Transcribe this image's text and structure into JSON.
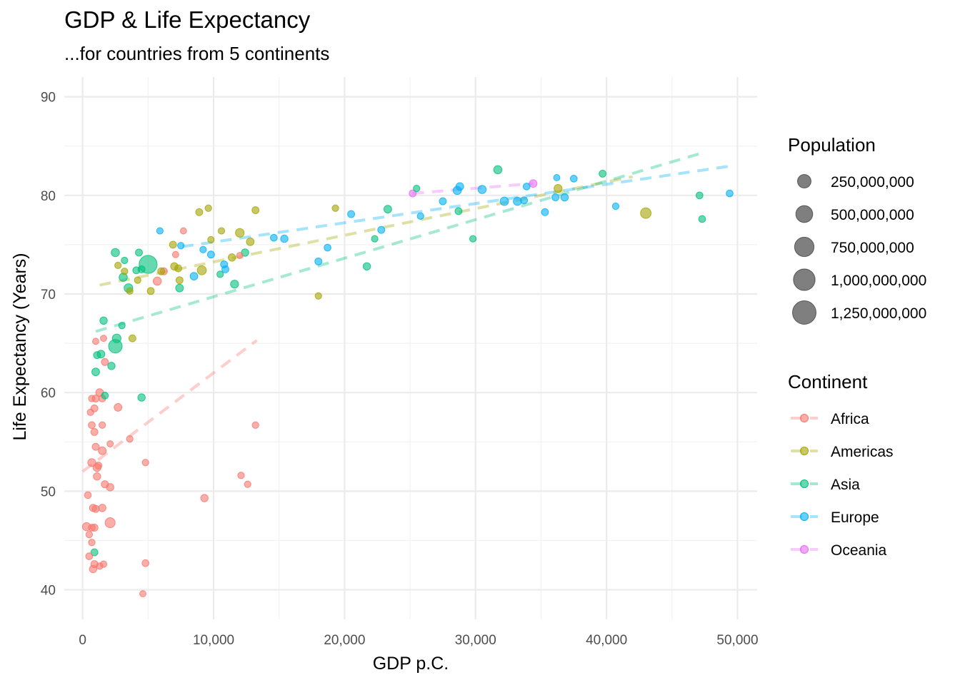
{
  "title": "GDP & Life Expectancy",
  "subtitle": "...for countries from 5 continents",
  "chart_data": {
    "type": "scatter",
    "xlabel": "GDP p.C.",
    "ylabel": "Life Expectancy (Years)",
    "xlim": [
      -1400,
      51500
    ],
    "ylim": [
      37,
      92
    ],
    "x_ticks": [
      0,
      10000,
      20000,
      30000,
      40000,
      50000
    ],
    "x_tick_labels": [
      "0",
      "10,000",
      "20,000",
      "30,000",
      "40,000",
      "50,000"
    ],
    "y_ticks": [
      40,
      50,
      60,
      70,
      80,
      90
    ],
    "y_tick_labels": [
      "40",
      "50",
      "60",
      "70",
      "80",
      "90"
    ],
    "grid": true,
    "size_legend": {
      "title": "Population",
      "entries": [
        {
          "label": "250,000,000",
          "value": 250000000
        },
        {
          "label": "500,000,000",
          "value": 500000000
        },
        {
          "label": "750,000,000",
          "value": 750000000
        },
        {
          "label": "1,000,000,000",
          "value": 1000000000
        },
        {
          "label": "1,250,000,000",
          "value": 1250000000
        }
      ]
    },
    "color_legend": {
      "title": "Continent",
      "placement": "right"
    },
    "series": [
      {
        "name": "Africa",
        "color": "#F8766D",
        "trend": [
          [
            0,
            52.0
          ],
          [
            13300,
            65.3
          ]
        ],
        "points": [
          [
            300,
            46.4,
            30
          ],
          [
            500,
            43.4,
            8
          ],
          [
            400,
            49.6,
            8
          ],
          [
            700,
            44.8,
            5
          ],
          [
            800,
            42.1,
            15
          ],
          [
            900,
            42.6,
            12
          ],
          [
            700,
            46.3,
            8
          ],
          [
            900,
            46.3,
            12
          ],
          [
            800,
            48.3,
            12
          ],
          [
            1000,
            48.2,
            10
          ],
          [
            1500,
            48.3,
            15
          ],
          [
            1600,
            42.6,
            5
          ],
          [
            1300,
            42.4,
            5
          ],
          [
            2100,
            46.8,
            80
          ],
          [
            500,
            45.6,
            5
          ],
          [
            1100,
            51.5,
            15
          ],
          [
            1700,
            50.7,
            12
          ],
          [
            2100,
            50.4,
            15
          ],
          [
            700,
            52.9,
            25
          ],
          [
            1100,
            52.4,
            25
          ],
          [
            1200,
            52.6,
            10
          ],
          [
            1000,
            54.5,
            10
          ],
          [
            1500,
            54.1,
            20
          ],
          [
            2100,
            54.8,
            3
          ],
          [
            900,
            56.0,
            10
          ],
          [
            1500,
            56.7,
            5
          ],
          [
            700,
            56.7,
            8
          ],
          [
            600,
            58.0,
            5
          ],
          [
            900,
            58.4,
            10
          ],
          [
            700,
            59.4,
            5
          ],
          [
            1300,
            60.0,
            20
          ],
          [
            1500,
            59.4,
            8
          ],
          [
            1000,
            59.4,
            10
          ],
          [
            1700,
            63.1,
            10
          ],
          [
            1000,
            65.2,
            3
          ],
          [
            1600,
            65.5,
            3
          ],
          [
            2700,
            58.5,
            20
          ],
          [
            3600,
            55.3,
            5
          ],
          [
            4800,
            52.9,
            5
          ],
          [
            4800,
            42.7,
            8
          ],
          [
            4600,
            39.6,
            3
          ],
          [
            9300,
            49.3,
            15
          ],
          [
            12100,
            51.6,
            5
          ],
          [
            12600,
            50.7,
            5
          ],
          [
            13200,
            56.7,
            5
          ],
          [
            12000,
            73.9,
            3
          ],
          [
            7100,
            74.0,
            3
          ],
          [
            7700,
            76.4,
            3
          ],
          [
            5700,
            71.3,
            30
          ],
          [
            6200,
            72.3,
            10
          ]
        ]
      },
      {
        "name": "Americas",
        "color": "#A3A500",
        "trend": [
          [
            1300,
            70.9
          ],
          [
            42000,
            81.9
          ]
        ],
        "points": [
          [
            2700,
            72.9,
            5
          ],
          [
            3200,
            72.3,
            5
          ],
          [
            3600,
            70.3,
            5
          ],
          [
            3800,
            65.5,
            10
          ],
          [
            4200,
            71.4,
            5
          ],
          [
            5200,
            70.3,
            10
          ],
          [
            6000,
            72.3,
            10
          ],
          [
            6900,
            75.0,
            10
          ],
          [
            7000,
            72.8,
            15
          ],
          [
            7300,
            72.6,
            10
          ],
          [
            7400,
            71.4,
            10
          ],
          [
            8900,
            78.3,
            10
          ],
          [
            9100,
            72.4,
            50
          ],
          [
            9600,
            78.7,
            5
          ],
          [
            9800,
            75.5,
            5
          ],
          [
            10600,
            76.4,
            5
          ],
          [
            11400,
            73.7,
            15
          ],
          [
            12000,
            76.2,
            40
          ],
          [
            12800,
            75.3,
            20
          ],
          [
            13200,
            78.5,
            10
          ],
          [
            18000,
            69.8,
            5
          ],
          [
            19300,
            78.7,
            5
          ],
          [
            36300,
            80.7,
            25
          ],
          [
            43000,
            78.2,
            100
          ]
        ]
      },
      {
        "name": "Asia",
        "color": "#00BF7D",
        "trend": [
          [
            1000,
            66.2
          ],
          [
            47300,
            84.3
          ]
        ],
        "points": [
          [
            900,
            43.8,
            10
          ],
          [
            1000,
            62.1,
            20
          ],
          [
            1100,
            63.8,
            10
          ],
          [
            1400,
            63.9,
            20
          ],
          [
            1600,
            67.3,
            15
          ],
          [
            1700,
            59.7,
            8
          ],
          [
            2200,
            62.7,
            15
          ],
          [
            2500,
            64.7,
            250
          ],
          [
            2600,
            65.5,
            40
          ],
          [
            2500,
            74.2,
            30
          ],
          [
            3000,
            66.8,
            5
          ],
          [
            3100,
            71.7,
            30
          ],
          [
            3200,
            73.4,
            5
          ],
          [
            3500,
            70.6,
            40
          ],
          [
            4100,
            72.4,
            10
          ],
          [
            4300,
            74.2,
            10
          ],
          [
            4500,
            72.5,
            10
          ],
          [
            4500,
            59.5,
            15
          ],
          [
            5000,
            73.0,
            600
          ],
          [
            7400,
            70.6,
            20
          ],
          [
            10500,
            72.0,
            5
          ],
          [
            11600,
            71.0,
            25
          ],
          [
            12400,
            74.2,
            15
          ],
          [
            21700,
            72.8,
            15
          ],
          [
            22300,
            75.6,
            5
          ],
          [
            23300,
            78.6,
            20
          ],
          [
            25500,
            80.7,
            5
          ],
          [
            28700,
            78.4,
            10
          ],
          [
            29800,
            75.6,
            5
          ],
          [
            31700,
            82.6,
            30
          ],
          [
            39700,
            82.2,
            10
          ],
          [
            47100,
            80.0,
            8
          ],
          [
            47300,
            77.6,
            8
          ]
        ]
      },
      {
        "name": "Europe",
        "color": "#00B0F6",
        "trend": [
          [
            7600,
            74.8
          ],
          [
            49600,
            83.0
          ]
        ],
        "points": [
          [
            5900,
            76.4,
            5
          ],
          [
            7500,
            74.9,
            5
          ],
          [
            8500,
            71.8,
            20
          ],
          [
            9200,
            74.5,
            5
          ],
          [
            9800,
            74.0,
            10
          ],
          [
            10800,
            73.0,
            10
          ],
          [
            10900,
            72.5,
            10
          ],
          [
            14600,
            75.7,
            8
          ],
          [
            15400,
            75.6,
            15
          ],
          [
            18000,
            73.3,
            10
          ],
          [
            18700,
            74.7,
            8
          ],
          [
            20500,
            78.1,
            10
          ],
          [
            22800,
            76.5,
            10
          ],
          [
            25800,
            77.9,
            5
          ],
          [
            27500,
            79.4,
            10
          ],
          [
            28600,
            80.5,
            30
          ],
          [
            28800,
            80.9,
            20
          ],
          [
            30500,
            80.6,
            30
          ],
          [
            32200,
            79.4,
            35
          ],
          [
            33200,
            79.4,
            30
          ],
          [
            33700,
            79.5,
            10
          ],
          [
            33900,
            80.9,
            8
          ],
          [
            35300,
            78.3,
            10
          ],
          [
            36100,
            79.8,
            10
          ],
          [
            36200,
            81.8,
            3
          ],
          [
            36800,
            79.8,
            15
          ],
          [
            37500,
            81.7,
            8
          ],
          [
            40700,
            78.9,
            5
          ],
          [
            49400,
            80.2,
            8
          ]
        ]
      },
      {
        "name": "Oceania",
        "color": "#E76BF3",
        "trend": [
          [
            25200,
            80.2
          ],
          [
            34400,
            81.2
          ]
        ],
        "points": [
          [
            25200,
            80.2,
            10
          ],
          [
            34400,
            81.2,
            20
          ]
        ]
      }
    ]
  }
}
